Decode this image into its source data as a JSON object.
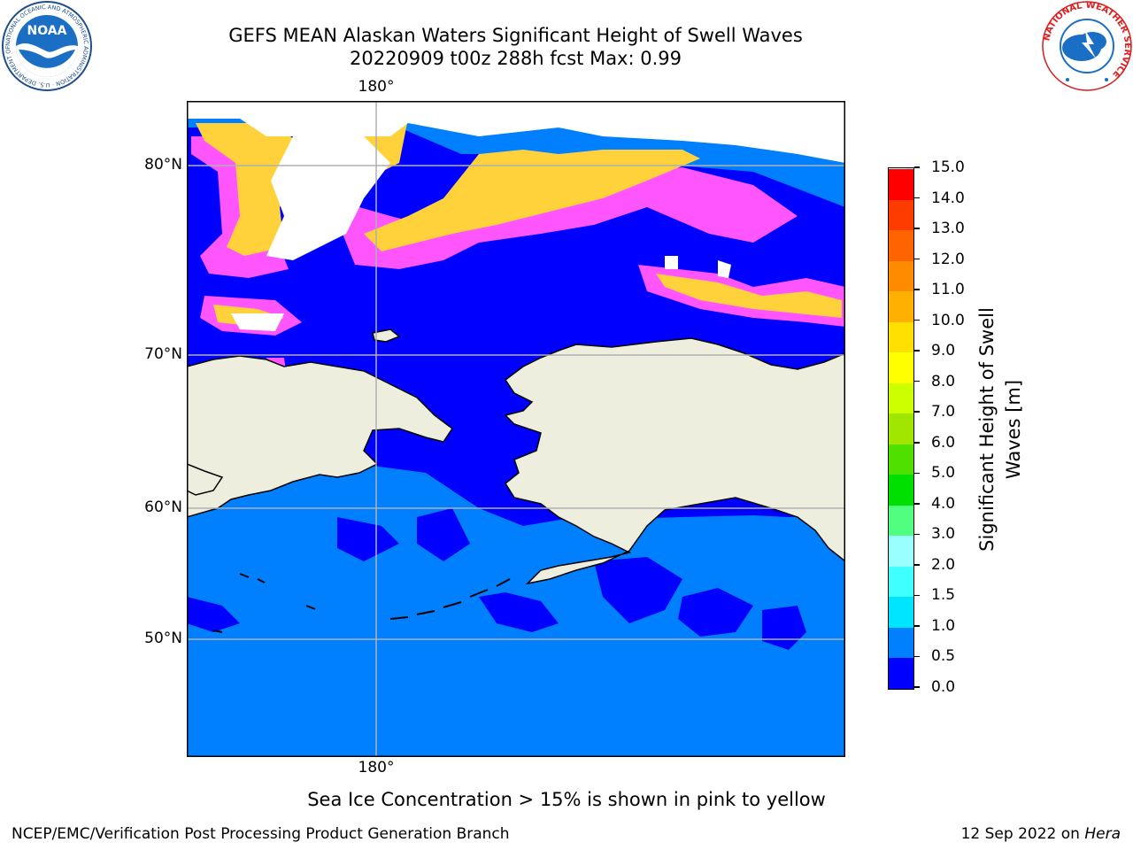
{
  "title": {
    "line1": "GEFS MEAN Alaskan Waters Significant Height of Swell Waves",
    "line2": "20220909 t00z 288h fcst   Max: 0.99"
  },
  "map": {
    "lon_labels": {
      "top": "180°",
      "bottom": "180°"
    },
    "lat_labels": [
      "80°N",
      "70°N",
      "60°N",
      "50°N"
    ],
    "colors": {
      "ocean_low": "#0000ff",
      "ocean_mid": "#0080ff",
      "land": "#eeeedf",
      "ice_pink": "#ff55ff",
      "ice_yellow": "#ffd23c",
      "grid": "#b0b0b0"
    }
  },
  "colorbar": {
    "label_line1": "Significant Height of Swell",
    "label_line2": "Waves [m]",
    "ticks": [
      "0.0",
      "0.5",
      "1.0",
      "1.5",
      "2.0",
      "3.0",
      "4.0",
      "5.0",
      "6.0",
      "7.0",
      "8.0",
      "9.0",
      "10.0",
      "11.0",
      "12.0",
      "13.0",
      "14.0",
      "15.0"
    ],
    "colors": [
      "#0000ff",
      "#0080ff",
      "#00e5ff",
      "#40ffff",
      "#99ffff",
      "#50ff80",
      "#00e000",
      "#50e000",
      "#a0e600",
      "#ccff00",
      "#ffff00",
      "#ffe000",
      "#ffb000",
      "#ff8c00",
      "#ff6400",
      "#ff3c00",
      "#ff0000"
    ]
  },
  "note": "Sea Ice Concentration > 15% is shown in pink to yellow",
  "footer": {
    "left": "NCEP/EMC/Verification Post Processing Product Generation Branch",
    "right_date": "12 Sep 2022 on ",
    "right_host": "Hera"
  },
  "logos": {
    "noaa": "NOAA",
    "noaa_ring": "NATIONAL OCEANIC AND ATMOSPHERIC ADMINISTRATION · U.S. DEPARTMENT OF COMMERCE ·",
    "nws_ring": "NATIONAL WEATHER SERVICE"
  }
}
